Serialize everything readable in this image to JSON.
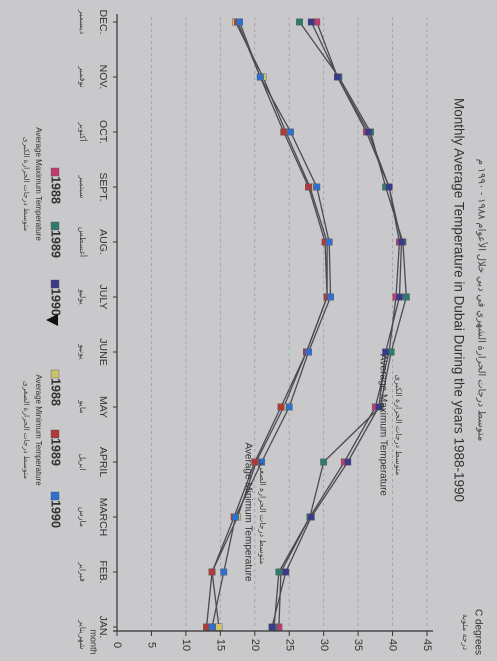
{
  "chart_data": {
    "type": "line",
    "title": "Monthly Average Temperature in Dubai During the years 1988-1990",
    "title_arabic": "متوسط درجات الحرارة الشهري في دبي خلال الأعوام ١٩٨٨ - ١٩٩٠ م",
    "ylabel": "C degrees",
    "ylabel_arabic": "درجة مئوية",
    "xlabel": "month",
    "xlabel_arabic": "شهر",
    "ylim": [
      0,
      45
    ],
    "yticks": [
      0,
      5,
      10,
      15,
      20,
      25,
      30,
      35,
      40,
      45
    ],
    "grid": true,
    "categories": [
      "JAN.",
      "FEB.",
      "MARCH",
      "APRIL",
      "MAY",
      "JUNE",
      "JULY",
      "AUG.",
      "SEPT.",
      "OCT.",
      "NOV.",
      "DEC."
    ],
    "categories_arabic": [
      "يناير",
      "فبراير",
      "مارس",
      "ابريل",
      "مايو",
      "يونيو",
      "يوليو",
      "أغسطس",
      "سبتمبر",
      "أكتوبر",
      "نوفمبر",
      "ديسمبر"
    ],
    "annotations": [
      {
        "id": "max",
        "text": "Average Maximum Temperature",
        "arabic": "متوسط درجات الحرارة الكبرى"
      },
      {
        "id": "min",
        "text": "Average Minimum Temperature",
        "arabic": "متوسط درجات الحرارة الصغرى"
      }
    ],
    "series": [
      {
        "name": "1988",
        "group": "max",
        "color": "#c23b6e",
        "values": [
          23.5,
          23.8,
          28,
          33,
          37.5,
          39.5,
          40.5,
          41,
          39.5,
          36.2,
          32,
          29
        ]
      },
      {
        "name": "1989",
        "group": "max",
        "color": "#2e7a6c",
        "values": [
          22.8,
          23.5,
          28,
          30,
          38.2,
          39.8,
          42,
          41.5,
          39,
          36.8,
          32.2,
          26.5
        ]
      },
      {
        "name": "1990",
        "group": "max",
        "color": "#3a3a8a",
        "values": [
          22.5,
          24.5,
          28.2,
          33.5,
          38,
          39,
          41,
          41.3,
          39.5,
          36.5,
          32,
          28.2
        ]
      },
      {
        "name": "1988",
        "group": "min",
        "color": "#c9c46c",
        "values": [
          14.8,
          13.8,
          17.5,
          20.2,
          24.2,
          27.5,
          30.5,
          30.5,
          28,
          24.5,
          21.2,
          17.2
        ]
      },
      {
        "name": "1989",
        "group": "min",
        "color": "#b03a3a",
        "values": [
          13,
          13.8,
          17,
          20,
          23.8,
          27.5,
          30.5,
          30.2,
          27.8,
          24.2,
          20.8,
          17.5
        ]
      },
      {
        "name": "1990",
        "group": "min",
        "color": "#2f6fd0",
        "values": [
          13.8,
          15.5,
          17.2,
          21,
          25,
          27.8,
          31,
          30.8,
          29,
          25.2,
          20.8,
          17.8
        ]
      }
    ],
    "legends": [
      {
        "id": "max",
        "label": "Average Maximum Temperature",
        "arabic": "متوسط درجات الحرارة الكبرى",
        "entries": [
          {
            "year": "1988",
            "color": "#c23b6e"
          },
          {
            "year": "1989",
            "color": "#2e7a6c"
          },
          {
            "year": "1990",
            "color": "#3a3a8a"
          }
        ]
      },
      {
        "id": "min",
        "label": "Average Minimum Temperature",
        "arabic": "متوسط درجات الحرارة الصغرى",
        "entries": [
          {
            "year": "1988",
            "color": "#c9c46c"
          },
          {
            "year": "1989",
            "color": "#b03a3a"
          },
          {
            "year": "1990",
            "color": "#2f6fd0"
          }
        ]
      }
    ]
  }
}
